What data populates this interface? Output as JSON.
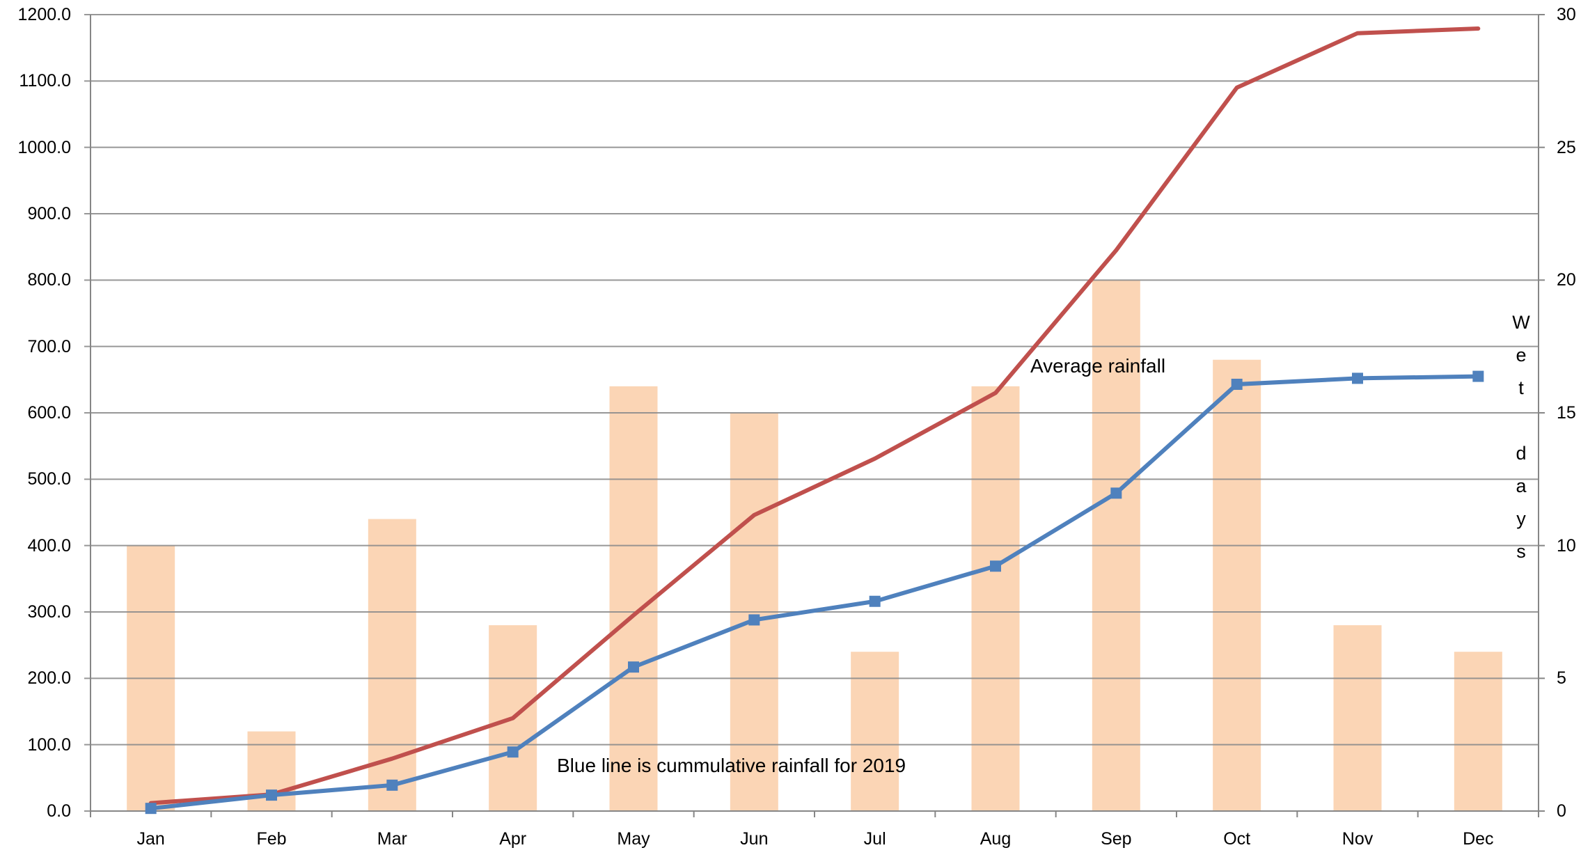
{
  "chart_data": {
    "type": "bar+line",
    "title": "",
    "categories": [
      "Jan",
      "Feb",
      "Mar",
      "Apr",
      "May",
      "Jun",
      "Jul",
      "Aug",
      "Sep",
      "Oct",
      "Nov",
      "Dec"
    ],
    "series": [
      {
        "name": "Wet days",
        "type": "bar",
        "axis": "right",
        "color": "#FBD5B5",
        "values": [
          10,
          3,
          11,
          7,
          16,
          15,
          6,
          16,
          20,
          17,
          7,
          6
        ]
      },
      {
        "name": "Cumulative rainfall 2019",
        "type": "line",
        "axis": "left",
        "color": "#4F81BD",
        "marker": "square",
        "values": [
          4,
          24,
          39,
          89,
          217,
          288,
          316,
          369,
          479,
          643,
          652,
          655
        ]
      },
      {
        "name": "Average rainfall",
        "type": "line",
        "axis": "left",
        "color": "#C0504D",
        "marker": "none",
        "values": [
          12,
          25,
          79,
          140,
          295,
          446,
          531,
          630,
          845,
          1090,
          1172,
          1179
        ]
      }
    ],
    "y_left": {
      "label": "",
      "range": [
        0,
        1200
      ],
      "ticks": [
        "0.0",
        "100.0",
        "200.0",
        "300.0",
        "400.0",
        "500.0",
        "600.0",
        "700.0",
        "800.0",
        "900.0",
        "1000.0",
        "1100.0",
        "1200.0"
      ]
    },
    "y_right": {
      "label": "Wet days",
      "range": [
        0,
        30
      ],
      "ticks": [
        "0",
        "5",
        "10",
        "15",
        "20",
        "25",
        "30"
      ]
    },
    "xlabel": "",
    "grid": true,
    "legend": "none",
    "annotations": [
      {
        "text": "Average rainfall",
        "near": "Aug-Sep"
      },
      {
        "text": "Blue line is cummulative rainfall for 2019",
        "near": "May-Jul bottom"
      }
    ]
  },
  "labels": {
    "annotation_average": "Average rainfall",
    "annotation_blue": "Blue line is cummulative rainfall for 2019",
    "right_axis_title_letters": [
      "W",
      "e",
      "t",
      "",
      "d",
      "a",
      "y",
      "s"
    ]
  },
  "colors": {
    "bar": "#FBD5B5",
    "blue_line": "#4F81BD",
    "red_line": "#C0504D",
    "grid": "#8C8C8C",
    "axis": "#868686"
  }
}
